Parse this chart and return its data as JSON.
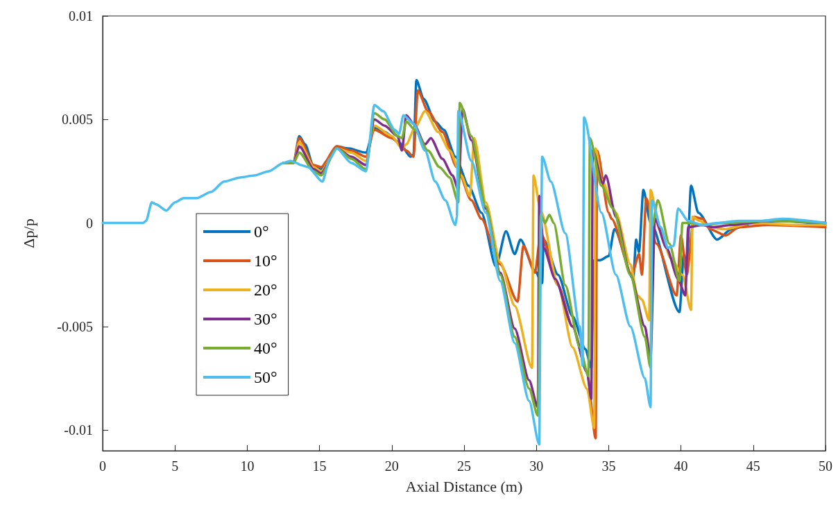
{
  "chart_data": {
    "type": "line",
    "xlabel": "Axial Distance (m)",
    "ylabel": "Δp/p",
    "xlim": [
      0,
      50
    ],
    "xticks": [
      0,
      5,
      10,
      15,
      20,
      25,
      30,
      35,
      40,
      45,
      50
    ],
    "ylim": [
      -0.011,
      0.01
    ],
    "yticks": [
      -0.01,
      -0.005,
      0,
      0.005,
      0.01
    ],
    "grid": false,
    "legend": "bottom left",
    "line_style": "solid",
    "series": [
      {
        "name": "0°",
        "color": "#0072bd",
        "x": [
          12.5,
          13.2,
          13.6,
          14.0,
          14.6,
          15.1,
          15.5,
          16.2,
          17.0,
          18.2,
          18.8,
          19.5,
          20.5,
          21.3,
          21.5,
          21.7,
          22.2,
          23.0,
          23.6,
          24.4,
          25.3,
          26.2,
          27.2,
          27.9,
          28.5,
          28.9,
          29.9,
          30.4,
          30.5,
          31.5,
          32.5,
          33.4,
          33.8,
          34.0,
          34.4,
          35.0,
          35.4,
          36.7,
          36.9,
          37.1,
          37.4,
          37.9,
          39.9,
          40.2,
          40.4,
          40.7,
          41.2,
          42.5,
          43.5,
          45,
          47,
          50
        ],
        "values": [
          0.0029,
          0.0029,
          0.0042,
          0.0038,
          0.0027,
          0.0026,
          0.003,
          0.0037,
          0.0036,
          0.0034,
          0.0046,
          0.0044,
          0.0039,
          0.0032,
          0.0033,
          0.0069,
          0.006,
          0.0049,
          0.0045,
          0.0032,
          0.0018,
          0.0005,
          -0.0021,
          -0.0004,
          -0.0015,
          -0.0008,
          -0.0023,
          -0.0029,
          -0.0008,
          -0.0025,
          -0.0045,
          -0.0061,
          -0.007,
          -0.0018,
          -0.0018,
          -0.0016,
          -0.0003,
          -0.0027,
          -0.0008,
          -0.0014,
          0.0016,
          0,
          -0.0043,
          -0.0015,
          -0.002,
          0.0018,
          0.0005,
          -0.0008,
          -0.0003,
          0,
          0.0001,
          -0.0001
        ]
      },
      {
        "name": "10°",
        "color": "#d95319",
        "x": [
          12.5,
          13.2,
          13.6,
          14.6,
          15.1,
          16.2,
          17.2,
          18.2,
          18.8,
          20.0,
          21.0,
          21.5,
          21.8,
          22.5,
          23.5,
          24.5,
          25.5,
          26.2,
          27.5,
          28.7,
          29.1,
          29.9,
          30.3,
          31.5,
          32.5,
          33.5,
          34.1,
          34.2,
          35.0,
          35.2,
          36.6,
          37.1,
          37.3,
          37.6,
          38.3,
          39.7,
          40.0,
          40.4,
          40.9,
          41.5,
          42.0,
          43.1,
          44,
          46,
          50
        ],
        "values": [
          0.0029,
          0.0029,
          0.0041,
          0.0028,
          0.0027,
          0.0037,
          0.0035,
          0.0032,
          0.0045,
          0.0041,
          0.0035,
          0.0032,
          0.0064,
          0.0054,
          0.0044,
          0.0027,
          0.0011,
          0.0002,
          -0.002,
          -0.0038,
          -0.0011,
          -0.0024,
          -0.0005,
          -0.003,
          -0.005,
          -0.0072,
          -0.0104,
          0.0035,
          0.0005,
          0.0002,
          -0.0025,
          -0.0015,
          -0.0025,
          0.0012,
          -0.001,
          -0.0035,
          -0.0006,
          -0.0025,
          0.0003,
          0.0002,
          -0.0003,
          -0.0006,
          -0.0002,
          -0.0001,
          -0.0002
        ]
      },
      {
        "name": "20°",
        "color": "#edb120",
        "x": [
          12.5,
          13.2,
          13.6,
          14.6,
          15.1,
          16.2,
          17.2,
          18.2,
          18.8,
          20.0,
          20.7,
          21.0,
          21.6,
          22.3,
          23.2,
          24.0,
          24.8,
          25.4,
          25.7,
          26.5,
          27.5,
          28.5,
          29.7,
          29.8,
          30.3,
          31.5,
          32.5,
          33.5,
          34.0,
          34.1,
          34.5,
          35.5,
          36.5,
          37.0,
          37.3,
          37.8,
          37.9,
          38.5,
          39.3,
          40.1,
          40.7,
          40.8,
          41.3,
          42,
          43,
          45,
          48,
          50
        ],
        "values": [
          0.0029,
          0.0029,
          0.0039,
          0.0027,
          0.0025,
          0.0036,
          0.0034,
          0.003,
          0.0047,
          0.0042,
          0.0036,
          0.0038,
          0.0046,
          0.0054,
          0.0044,
          0.0035,
          0.0023,
          0.0013,
          0.0041,
          0.001,
          -0.0019,
          -0.004,
          -0.007,
          0.0023,
          0.0006,
          -0.003,
          -0.006,
          -0.008,
          -0.0099,
          0.0036,
          0.0021,
          0.0005,
          -0.002,
          -0.0035,
          -0.0037,
          -0.0047,
          0.0016,
          -0.0003,
          -0.0017,
          -0.0025,
          -0.0042,
          0.0003,
          0.0001,
          -0.0002,
          -0.0003,
          0,
          -0.0001,
          -0.0001
        ]
      },
      {
        "name": "30°",
        "color": "#7e2f8e",
        "x": [
          12.5,
          13.2,
          13.6,
          14.6,
          15.1,
          16.2,
          17.2,
          18.2,
          18.8,
          19.5,
          20.4,
          20.7,
          21.0,
          21.5,
          22.3,
          22.7,
          23.5,
          24.2,
          24.6,
          24.9,
          25.5,
          26.5,
          27.5,
          28.5,
          29.5,
          30.1,
          30.2,
          30.5,
          31.3,
          32.5,
          33.5,
          33.8,
          33.9,
          34.6,
          34.8,
          35.5,
          36.5,
          37.5,
          37.9,
          38.2,
          39.0,
          39.8,
          40.3,
          40.5,
          41.5,
          42.2,
          43.5,
          46,
          50
        ],
        "values": [
          0.0029,
          0.0029,
          0.0037,
          0.0026,
          0.0024,
          0.0036,
          0.0032,
          0.0028,
          0.005,
          0.0047,
          0.0042,
          0.0035,
          0.0052,
          0.0048,
          0.0038,
          0.0041,
          0.0031,
          0.0023,
          0.0016,
          0.0055,
          0.004,
          0.0007,
          -0.0024,
          -0.0051,
          -0.0076,
          -0.0089,
          0.0013,
          -0.0012,
          -0.0027,
          -0.005,
          -0.0072,
          -0.0085,
          0.0035,
          0.0019,
          0.0023,
          0.0003,
          -0.0025,
          -0.005,
          -0.0065,
          0.0002,
          -0.0012,
          -0.0027,
          -0.0035,
          -0.0002,
          -0.0001,
          -0.0002,
          -0.0001,
          0.0001,
          0
        ]
      },
      {
        "name": "40°",
        "color": "#77ac30",
        "x": [
          12.5,
          13.2,
          13.6,
          14.6,
          15.1,
          16.2,
          17.2,
          18.2,
          18.8,
          19.5,
          20.4,
          20.7,
          21.0,
          21.6,
          22.5,
          23.3,
          24.0,
          24.6,
          24.7,
          25.5,
          26.5,
          27.5,
          28.5,
          29.5,
          30.1,
          30.3,
          30.6,
          30.9,
          31.2,
          32,
          33,
          33.6,
          33.7,
          34.5,
          35.3,
          36.5,
          37.5,
          37.9,
          38.0,
          38.4,
          39.2,
          39.9,
          40.1,
          40.6,
          41.5,
          43,
          46,
          50
        ],
        "values": [
          0.0029,
          0.0029,
          0.0034,
          0.0025,
          0.0023,
          0.0036,
          0.0031,
          0.0026,
          0.0053,
          0.005,
          0.0042,
          0.0041,
          0.0049,
          0.0045,
          0.0035,
          0.0027,
          0.0022,
          0.001,
          0.0058,
          0.0042,
          0.0008,
          -0.0025,
          -0.0055,
          -0.008,
          -0.0093,
          0.0004,
          0,
          0.0004,
          0,
          -0.003,
          -0.006,
          -0.0074,
          0.0041,
          0.0018,
          0.0007,
          -0.0025,
          -0.0055,
          -0.007,
          -0.0002,
          0.0011,
          -0.001,
          -0.0028,
          0,
          0,
          -0.0001,
          0,
          0.0001,
          0
        ]
      },
      {
        "name": "50°",
        "color": "#4dbeee",
        "x": [
          0,
          2.8,
          3.0,
          3.4,
          3.7,
          4.4,
          5.0,
          5.6,
          6.5,
          7.5,
          8.4,
          9.5,
          10.5,
          11.5,
          12.5,
          13.0,
          13.4,
          13.7,
          14.2,
          15.2,
          15.7,
          16.2,
          17.2,
          18.2,
          18.8,
          19.4,
          20.2,
          20.5,
          20.8,
          21.5,
          22.3,
          23.0,
          23.7,
          24.4,
          24.5,
          24.6,
          25.5,
          26.5,
          27.5,
          28.5,
          29.5,
          30.2,
          30.3,
          30.4,
          31.0,
          32,
          33.0,
          33.2,
          33.3,
          34.5,
          35.5,
          36.5,
          37.5,
          37.9,
          38.0,
          38.6,
          39.1,
          39.5,
          39.8,
          40.5,
          41.5,
          42.5,
          44,
          45.5,
          47,
          50
        ],
        "values": [
          0,
          0,
          0.0001,
          0.001,
          0.0009,
          0.0006,
          0.001,
          0.0012,
          0.0012,
          0.0015,
          0.002,
          0.0022,
          0.0023,
          0.0025,
          0.0029,
          0.003,
          0.0029,
          0.0028,
          0.0027,
          0.002,
          0.0031,
          0.0036,
          0.0029,
          0.0025,
          0.0057,
          0.0054,
          0.0045,
          0.0043,
          0.0052,
          0.0048,
          0.0035,
          0.002,
          0.0011,
          -0.0001,
          0.0003,
          0.0054,
          0.003,
          0.0005,
          -0.0028,
          -0.0058,
          -0.0086,
          -0.0107,
          -0.002,
          0.0032,
          0.002,
          -0.0005,
          -0.005,
          -0.0069,
          0.0051,
          0.0005,
          -0.0025,
          -0.005,
          -0.0075,
          -0.0089,
          0.0011,
          -0.0002,
          -0.0012,
          -0.0011,
          0.0007,
          0.0001,
          -0.0001,
          0,
          0.0001,
          0.0001,
          0.0002,
          0
        ]
      }
    ]
  }
}
